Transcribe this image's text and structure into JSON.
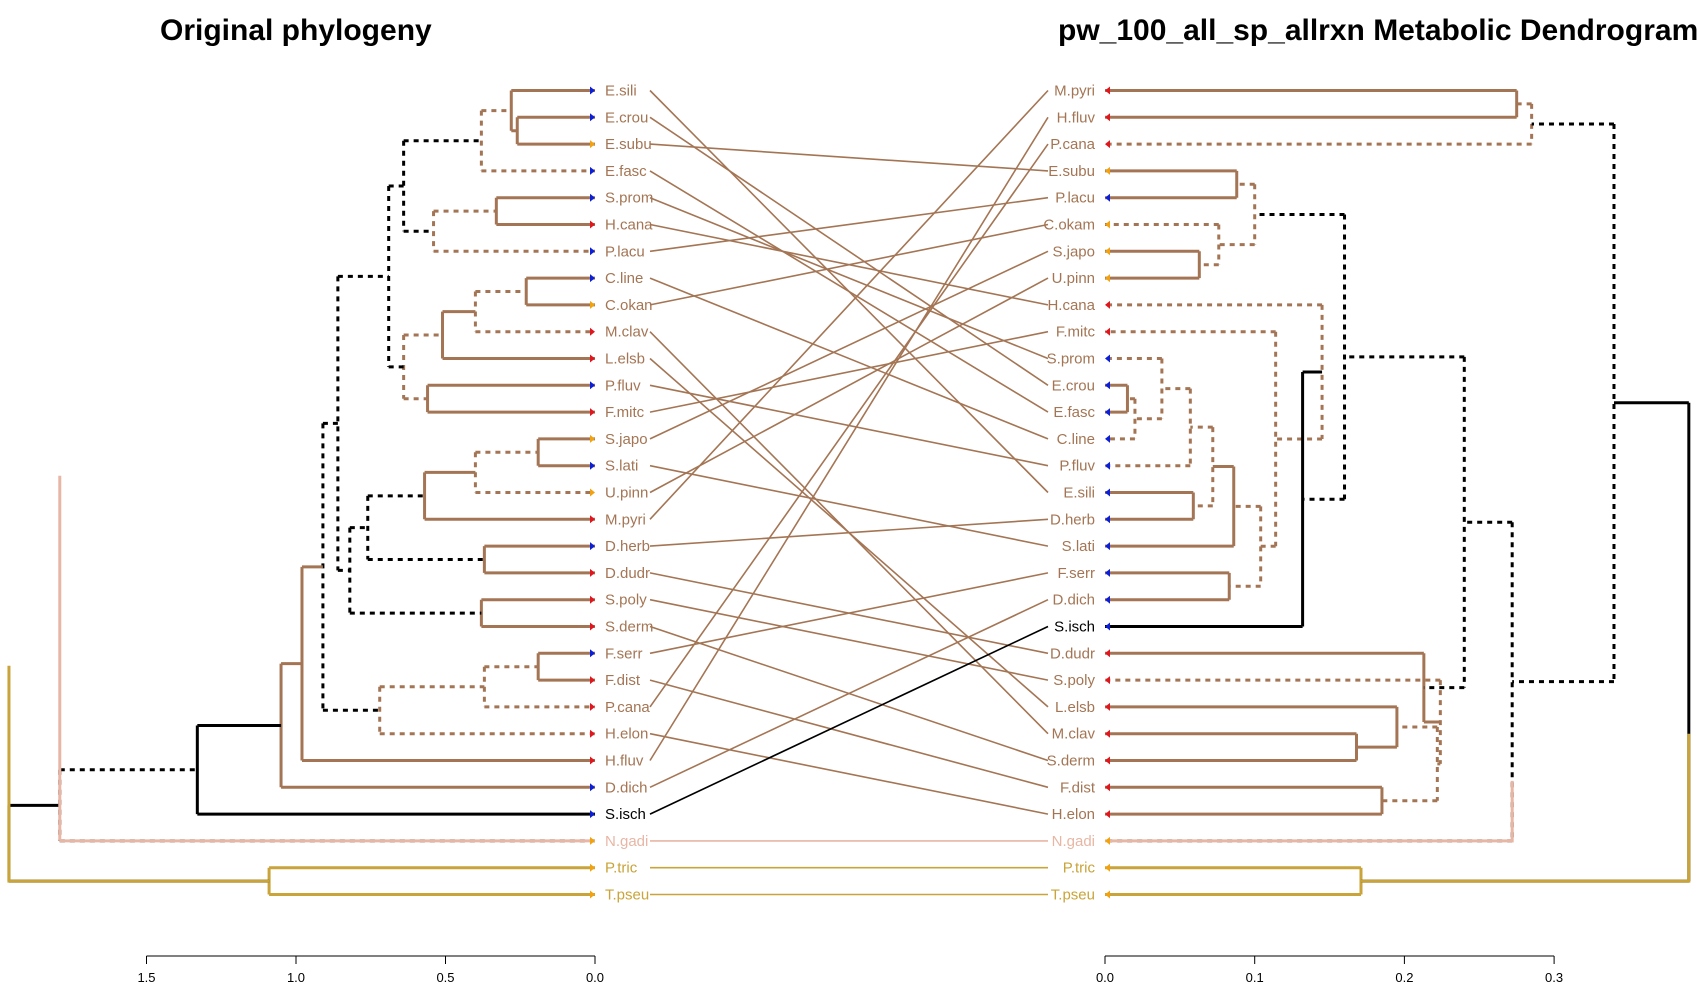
{
  "titles": {
    "left": "Original phylogeny",
    "right": "pw_100_all_sp_allrxn Metabolic Dendrogram"
  },
  "colors": {
    "brown": "#a47554",
    "black": "#000000",
    "pink": "#e8b6a4",
    "gold": "#c9a43a",
    "tip_blue": "#0b1fd8",
    "tip_red": "#e0161e",
    "tip_orange": "#f2a20e"
  },
  "left_tips": [
    "E.sili",
    "E.crou",
    "E.subu",
    "E.fasc",
    "S.prom",
    "H.cana",
    "P.lacu",
    "C.line",
    "C.okan",
    "M.clav",
    "L.elsb",
    "P.fluv",
    "F.mitc",
    "S.japo",
    "S.lati",
    "U.pinn",
    "M.pyri",
    "D.herb",
    "D.dudr",
    "S.poly",
    "S.derm",
    "F.serr",
    "F.dist",
    "P.cana",
    "H.elon",
    "H.fluv",
    "D.dich",
    "S.isch",
    "N.gadi",
    "P.tric",
    "T.pseu"
  ],
  "right_tips": [
    "M.pyri",
    "H.fluv",
    "P.cana",
    "E.subu",
    "P.lacu",
    "C.okam",
    "S.japo",
    "U.pinn",
    "H.cana",
    "F.mitc",
    "S.prom",
    "E.crou",
    "E.fasc",
    "C.line",
    "P.fluv",
    "E.sili",
    "D.herb",
    "S.lati",
    "F.serr",
    "D.dich",
    "S.isch",
    "D.dudr",
    "S.poly",
    "L.elsb",
    "M.clav",
    "S.derm",
    "F.dist",
    "H.elon",
    "N.gadi",
    "P.tric",
    "T.pseu"
  ],
  "tip_groups": {
    "E.sili": "blue",
    "E.crou": "blue",
    "E.subu": "orange",
    "E.fasc": "blue",
    "S.prom": "blue",
    "H.cana": "red",
    "P.lacu": "blue",
    "C.line": "blue",
    "C.okan": "orange",
    "C.okam": "orange",
    "M.clav": "red",
    "L.elsb": "red",
    "P.fluv": "blue",
    "F.mitc": "red",
    "S.japo": "orange",
    "S.lati": "blue",
    "U.pinn": "orange",
    "M.pyri": "red",
    "D.herb": "blue",
    "D.dudr": "red",
    "S.poly": "red",
    "S.derm": "red",
    "F.serr": "blue",
    "F.dist": "red",
    "P.cana": "red",
    "H.elon": "red",
    "H.fluv": "red",
    "D.dich": "blue",
    "S.isch": "blue",
    "N.gadi": "orange",
    "P.tric": "orange",
    "T.pseu": "orange"
  },
  "connections": [
    [
      "E.sili",
      "E.sili"
    ],
    [
      "E.crou",
      "E.crou"
    ],
    [
      "E.subu",
      "E.subu"
    ],
    [
      "E.fasc",
      "E.fasc"
    ],
    [
      "S.prom",
      "S.prom"
    ],
    [
      "H.cana",
      "H.cana"
    ],
    [
      "P.lacu",
      "P.lacu"
    ],
    [
      "C.line",
      "C.line"
    ],
    [
      "C.okan",
      "C.okam"
    ],
    [
      "M.clav",
      "M.clav"
    ],
    [
      "L.elsb",
      "L.elsb"
    ],
    [
      "P.fluv",
      "P.fluv"
    ],
    [
      "F.mitc",
      "F.mitc"
    ],
    [
      "S.japo",
      "S.japo"
    ],
    [
      "S.lati",
      "S.lati"
    ],
    [
      "U.pinn",
      "U.pinn"
    ],
    [
      "M.pyri",
      "M.pyri"
    ],
    [
      "D.herb",
      "D.herb"
    ],
    [
      "D.dudr",
      "D.dudr"
    ],
    [
      "S.poly",
      "S.poly"
    ],
    [
      "S.derm",
      "S.derm"
    ],
    [
      "F.serr",
      "F.serr"
    ],
    [
      "F.dist",
      "F.dist"
    ],
    [
      "P.cana",
      "P.cana"
    ],
    [
      "H.elon",
      "H.elon"
    ],
    [
      "H.fluv",
      "H.fluv"
    ],
    [
      "D.dich",
      "D.dich"
    ],
    [
      "S.isch",
      "S.isch"
    ],
    [
      "N.gadi",
      "N.gadi"
    ],
    [
      "P.tric",
      "P.tric"
    ],
    [
      "T.pseu",
      "T.pseu"
    ]
  ],
  "left_axis": {
    "ticks": [
      1.5,
      1.0,
      0.5,
      0.0
    ],
    "labels": [
      "1.5",
      "1.0",
      "0.5",
      "0.0"
    ]
  },
  "right_axis": {
    "ticks": [
      0.0,
      0.1,
      0.2,
      0.3
    ],
    "labels": [
      "0.0",
      "0.1",
      "0.2",
      "0.3"
    ]
  }
}
